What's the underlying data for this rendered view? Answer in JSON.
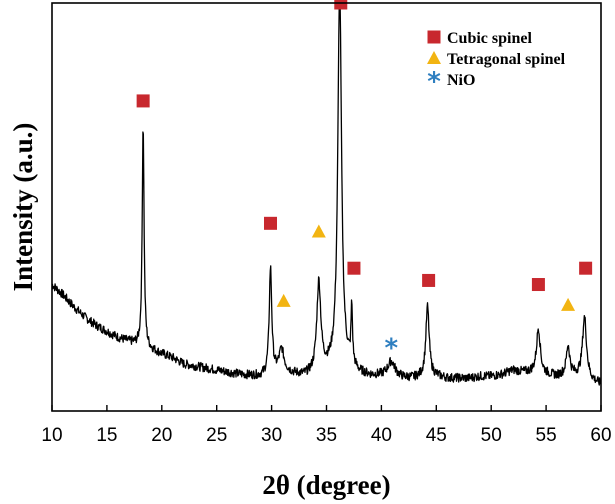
{
  "chart_data": {
    "type": "line",
    "xlabel": "2θ (degree)",
    "ylabel": "Intensity (a.u.)",
    "xlim": [
      10,
      60
    ],
    "ylim": [
      0,
      1
    ],
    "x_ticks": [
      10,
      15,
      20,
      25,
      30,
      35,
      40,
      45,
      50,
      55,
      60
    ],
    "y_ticks_shown": false,
    "legend_placement": "top-right",
    "legend": [
      {
        "label": "Cubic spinel",
        "marker": "square",
        "color": "#c8282e"
      },
      {
        "label": "Tetragonal spinel",
        "marker": "triangle",
        "color": "#f2b412"
      },
      {
        "label": "NiO",
        "marker": "asterisk",
        "color": "#2f7fc0"
      }
    ],
    "profile": [
      [
        10.0,
        0.31
      ],
      [
        11.0,
        0.285
      ],
      [
        12.0,
        0.255
      ],
      [
        13.0,
        0.23
      ],
      [
        14.0,
        0.21
      ],
      [
        15.0,
        0.195
      ],
      [
        16.0,
        0.18
      ],
      [
        17.0,
        0.17
      ],
      [
        18.0,
        0.16
      ],
      [
        19.0,
        0.15
      ],
      [
        20.0,
        0.14
      ],
      [
        21.0,
        0.13
      ],
      [
        22.0,
        0.115
      ],
      [
        23.0,
        0.11
      ],
      [
        24.0,
        0.105
      ],
      [
        25.0,
        0.1
      ],
      [
        26.0,
        0.095
      ],
      [
        27.0,
        0.09
      ],
      [
        28.0,
        0.087
      ],
      [
        29.0,
        0.085
      ],
      [
        30.0,
        0.09
      ],
      [
        31.0,
        0.1
      ],
      [
        32.0,
        0.09
      ],
      [
        33.0,
        0.085
      ],
      [
        34.0,
        0.09
      ],
      [
        35.0,
        0.1
      ],
      [
        36.0,
        0.11
      ],
      [
        37.0,
        0.105
      ],
      [
        38.0,
        0.09
      ],
      [
        39.0,
        0.085
      ],
      [
        40.0,
        0.085
      ],
      [
        41.0,
        0.085
      ],
      [
        42.0,
        0.08
      ],
      [
        43.0,
        0.08
      ],
      [
        44.0,
        0.085
      ],
      [
        45.0,
        0.085
      ],
      [
        46.0,
        0.08
      ],
      [
        47.0,
        0.08
      ],
      [
        48.0,
        0.08
      ],
      [
        49.0,
        0.085
      ],
      [
        50.0,
        0.085
      ],
      [
        51.0,
        0.09
      ],
      [
        52.0,
        0.1
      ],
      [
        53.0,
        0.095
      ],
      [
        54.0,
        0.095
      ],
      [
        55.0,
        0.09
      ],
      [
        56.0,
        0.085
      ],
      [
        57.0,
        0.09
      ],
      [
        58.0,
        0.085
      ],
      [
        59.0,
        0.075
      ],
      [
        60.0,
        0.065
      ]
    ],
    "peaks": [
      {
        "x": 18.3,
        "height": 0.55,
        "width": 0.1
      },
      {
        "x": 29.9,
        "height": 0.26,
        "width": 0.14
      },
      {
        "x": 30.9,
        "height": 0.05,
        "width": 0.25
      },
      {
        "x": 34.3,
        "height": 0.22,
        "width": 0.22
      },
      {
        "x": 36.2,
        "height": 0.93,
        "width": 0.2
      },
      {
        "x": 37.3,
        "height": 0.14,
        "width": 0.08
      },
      {
        "x": 40.9,
        "height": 0.035,
        "width": 0.4
      },
      {
        "x": 44.2,
        "height": 0.17,
        "width": 0.18
      },
      {
        "x": 54.3,
        "height": 0.11,
        "width": 0.2
      },
      {
        "x": 57.0,
        "height": 0.07,
        "width": 0.18
      },
      {
        "x": 58.5,
        "height": 0.15,
        "width": 0.22
      }
    ],
    "markers": [
      {
        "phase": "Cubic spinel",
        "x": 18.3,
        "y": 0.76
      },
      {
        "phase": "Cubic spinel",
        "x": 29.9,
        "y": 0.46
      },
      {
        "phase": "Tetragonal spinel",
        "x": 31.1,
        "y": 0.27
      },
      {
        "phase": "Tetragonal spinel",
        "x": 34.3,
        "y": 0.44
      },
      {
        "phase": "Cubic spinel",
        "x": 36.3,
        "y": 1.0
      },
      {
        "phase": "Cubic spinel",
        "x": 37.5,
        "y": 0.35
      },
      {
        "phase": "NiO",
        "x": 40.9,
        "y": 0.16
      },
      {
        "phase": "Cubic spinel",
        "x": 44.3,
        "y": 0.32
      },
      {
        "phase": "Cubic spinel",
        "x": 54.3,
        "y": 0.31
      },
      {
        "phase": "Tetragonal spinel",
        "x": 57.0,
        "y": 0.26
      },
      {
        "phase": "Cubic spinel",
        "x": 58.6,
        "y": 0.35
      }
    ]
  }
}
